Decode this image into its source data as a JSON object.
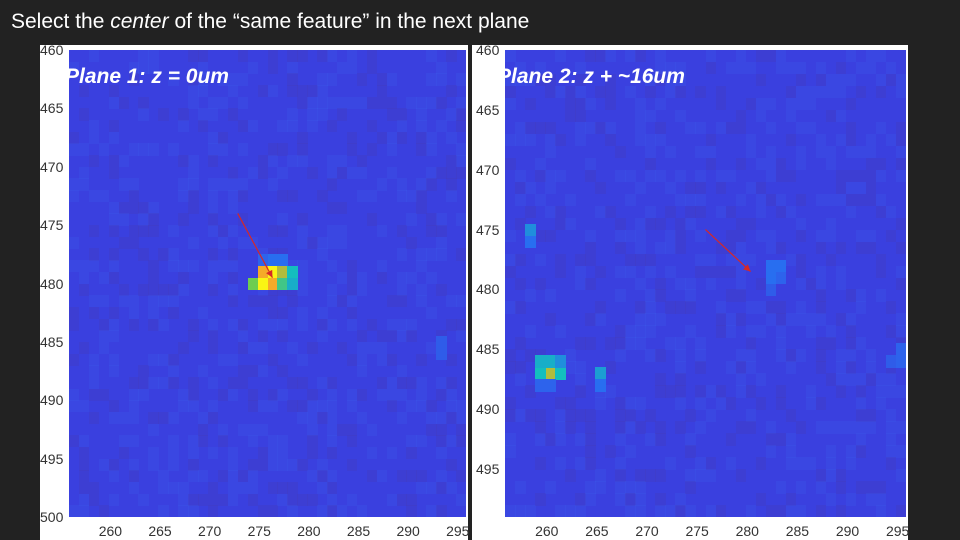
{
  "instruction": {
    "prefix": "Select the ",
    "emphasis": "center",
    "suffix": " of the “same feature” in the next plane"
  },
  "colors": {
    "background": "#222222",
    "heatmap_base": "#3a40df",
    "arrow": "#d62828"
  },
  "chart_data": [
    {
      "type": "heatmap",
      "title": "Plane 1: z = 0um",
      "xlabel": "",
      "ylabel": "",
      "xlim": [
        256,
        296
      ],
      "ylim": [
        460,
        500
      ],
      "xticks": [
        "260",
        "265",
        "270",
        "275",
        "280",
        "285",
        "290",
        "295"
      ],
      "yticks": [
        "460",
        "465",
        "470",
        "475",
        "480",
        "485",
        "490",
        "495",
        "500"
      ],
      "hotspots": [
        {
          "x": 275,
          "y": 479,
          "level": 0.85
        },
        {
          "x": 276,
          "y": 479,
          "level": 1.0
        },
        {
          "x": 277,
          "y": 479,
          "level": 0.75
        },
        {
          "x": 278,
          "y": 479,
          "level": 0.45
        },
        {
          "x": 274,
          "y": 480,
          "level": 0.65
        },
        {
          "x": 275,
          "y": 480,
          "level": 1.0
        },
        {
          "x": 276,
          "y": 480,
          "level": 0.85
        },
        {
          "x": 277,
          "y": 480,
          "level": 0.55
        },
        {
          "x": 278,
          "y": 480,
          "level": 0.4
        },
        {
          "x": 276,
          "y": 478,
          "level": 0.2
        },
        {
          "x": 277,
          "y": 478,
          "level": 0.2
        },
        {
          "x": 275,
          "y": 478,
          "level": 0.15
        },
        {
          "x": 293,
          "y": 485,
          "level": 0.12
        },
        {
          "x": 293,
          "y": 486,
          "level": 0.12
        }
      ],
      "arrow": {
        "from": [
          273,
          474
        ],
        "to": [
          276.5,
          479.5
        ]
      }
    },
    {
      "type": "heatmap",
      "title": "Plane 2: z + ~16um",
      "xlabel": "",
      "ylabel": "",
      "xlim": [
        256,
        296
      ],
      "ylim": [
        460,
        499
      ],
      "xticks": [
        "260",
        "265",
        "270",
        "275",
        "280",
        "285",
        "290",
        "295"
      ],
      "yticks": [
        "460",
        "465",
        "470",
        "475",
        "480",
        "485",
        "490",
        "495"
      ],
      "hotspots": [
        {
          "x": 260,
          "y": 487,
          "level": 0.75
        },
        {
          "x": 259,
          "y": 487,
          "level": 0.45
        },
        {
          "x": 261,
          "y": 487,
          "level": 0.45
        },
        {
          "x": 259,
          "y": 486,
          "level": 0.4
        },
        {
          "x": 260,
          "y": 486,
          "level": 0.4
        },
        {
          "x": 261,
          "y": 486,
          "level": 0.3
        },
        {
          "x": 265,
          "y": 487,
          "level": 0.35
        },
        {
          "x": 265,
          "y": 488,
          "level": 0.2
        },
        {
          "x": 259,
          "y": 488,
          "level": 0.15
        },
        {
          "x": 260,
          "y": 488,
          "level": 0.15
        },
        {
          "x": 282,
          "y": 478,
          "level": 0.2
        },
        {
          "x": 283,
          "y": 478,
          "level": 0.2
        },
        {
          "x": 282,
          "y": 479,
          "level": 0.2
        },
        {
          "x": 283,
          "y": 479,
          "level": 0.15
        },
        {
          "x": 282,
          "y": 480,
          "level": 0.12
        },
        {
          "x": 295,
          "y": 485,
          "level": 0.15
        },
        {
          "x": 294,
          "y": 486,
          "level": 0.12
        },
        {
          "x": 295,
          "y": 486,
          "level": 0.15
        },
        {
          "x": 258,
          "y": 475,
          "level": 0.3
        },
        {
          "x": 258,
          "y": 476,
          "level": 0.2
        }
      ],
      "arrow": {
        "from": [
          276,
          475
        ],
        "to": [
          280.5,
          478.5
        ]
      }
    }
  ]
}
